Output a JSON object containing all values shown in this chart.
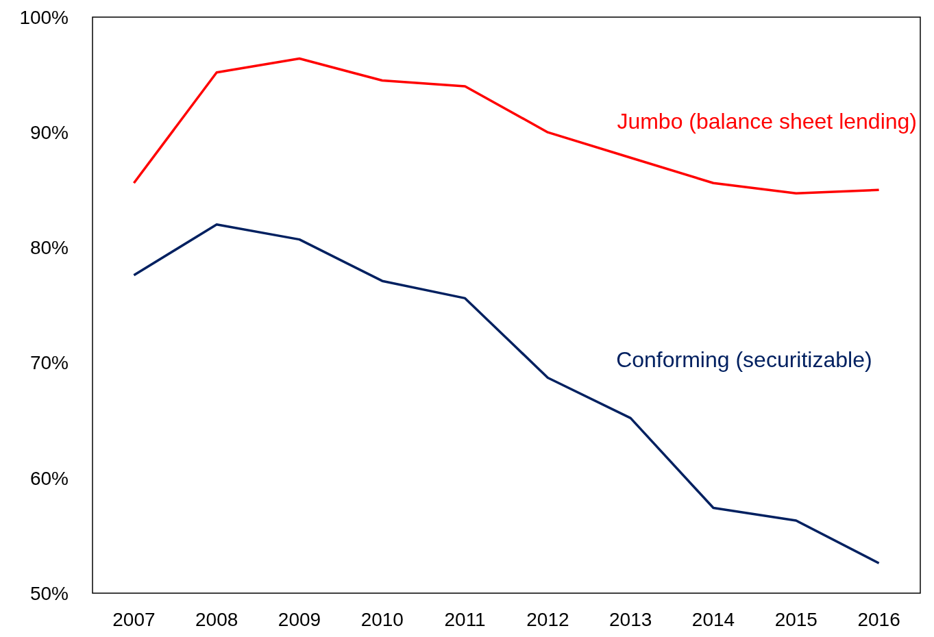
{
  "chart_data": {
    "type": "line",
    "categories": [
      "2007",
      "2008",
      "2009",
      "2010",
      "2011",
      "2012",
      "2013",
      "2014",
      "2015",
      "2016"
    ],
    "series": [
      {
        "name": "Jumbo (balance sheet lending)",
        "color": "#ff0000",
        "values": [
          85.6,
          95.2,
          96.4,
          94.5,
          94.0,
          90.0,
          87.8,
          85.6,
          84.7,
          85.0
        ]
      },
      {
        "name": "Conforming (securitizable)",
        "color": "#002060",
        "values": [
          77.6,
          82.0,
          80.7,
          77.1,
          75.6,
          68.7,
          65.2,
          57.4,
          56.3,
          52.6
        ]
      }
    ],
    "ylim": [
      50,
      100
    ],
    "yticks": [
      {
        "value": 50,
        "label": "50%"
      },
      {
        "value": 60,
        "label": "60%"
      },
      {
        "value": 70,
        "label": "70%"
      },
      {
        "value": 80,
        "label": "80%"
      },
      {
        "value": 90,
        "label": "90%"
      },
      {
        "value": 100,
        "label": "100%"
      }
    ],
    "grid": false,
    "marker": "none",
    "line_style": "solid"
  }
}
